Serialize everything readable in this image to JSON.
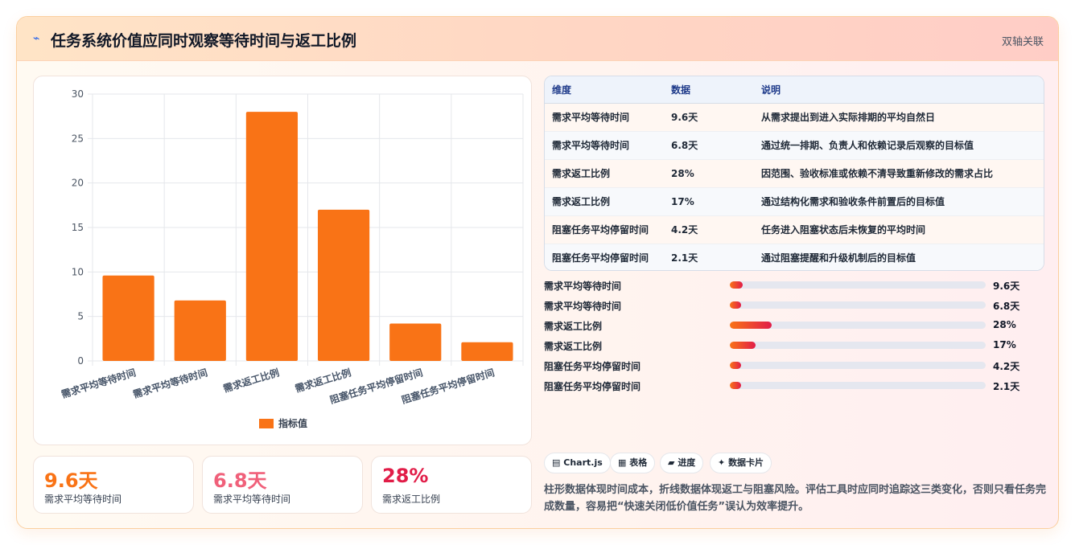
{
  "header": {
    "title": "任务系统价值应同时观察等待时间与返工比例",
    "tag": "双轴关联"
  },
  "chart_data": {
    "type": "bar",
    "categories": [
      "需求平均等待时间",
      "需求平均等待时间",
      "需求返工比例",
      "需求返工比例",
      "阻塞任务平均停留时间",
      "阻塞任务平均停留时间"
    ],
    "series": [
      {
        "name": "指标值",
        "values": [
          9.6,
          6.8,
          28,
          17,
          4.2,
          2.1
        ],
        "color": "#f97316"
      }
    ],
    "yticks": [
      0,
      5,
      10,
      15,
      20,
      25,
      30
    ],
    "ylim": [
      0,
      30
    ],
    "grid": true,
    "legend": "bottom"
  },
  "kpis": [
    {
      "value": "9.6天",
      "label": "需求平均等待时间",
      "color": "#f97316"
    },
    {
      "value": "6.8天",
      "label": "需求平均等待时间",
      "color": "#f0607a"
    },
    {
      "value": "28%",
      "label": "需求返工比例",
      "color": "#e11d48"
    }
  ],
  "table": {
    "headers": [
      "维度",
      "数据",
      "说明"
    ],
    "rows": [
      [
        "需求平均等待时间",
        "9.6天",
        "从需求提出到进入实际排期的平均自然日"
      ],
      [
        "需求平均等待时间",
        "6.8天",
        "通过统一排期、负责人和依赖记录后观察的目标值"
      ],
      [
        "需求返工比例",
        "28%",
        "因范围、验收标准或依赖不清导致重新修改的需求占比"
      ],
      [
        "需求返工比例",
        "17%",
        "通过结构化需求和验收条件前置后的目标值"
      ],
      [
        "阻塞任务平均停留时间",
        "4.2天",
        "任务进入阻塞状态后未恢复的平均时间"
      ],
      [
        "阻塞任务平均停留时间",
        "2.1天",
        "通过阻塞提醒和升级机制后的目标值"
      ]
    ]
  },
  "progress": [
    {
      "label": "需求平均等待时间",
      "value": "9.6天",
      "fraction": 0.05
    },
    {
      "label": "需求平均等待时间",
      "value": "6.8天",
      "fraction": 0.045
    },
    {
      "label": "需求返工比例",
      "value": "28%",
      "fraction": 0.165
    },
    {
      "label": "需求返工比例",
      "value": "17%",
      "fraction": 0.1
    },
    {
      "label": "阻塞任务平均停留时间",
      "value": "4.2天",
      "fraction": 0.045
    },
    {
      "label": "阻塞任务平均停留时间",
      "value": "2.1天",
      "fraction": 0.045
    }
  ],
  "pills": [
    {
      "icon": "▤",
      "label": "Chart.js"
    },
    {
      "icon": "▦",
      "label": "表格"
    },
    {
      "icon": "▰",
      "label": "进度"
    },
    {
      "icon": "✦",
      "label": "数据卡片"
    }
  ],
  "description": "柱形数据体现时间成本，折线数据体现返工与阻塞风险。评估工具时应同时追踪这三类变化，否则只看任务完成数量，容易把“快速关闭低价值任务”误认为效率提升。"
}
